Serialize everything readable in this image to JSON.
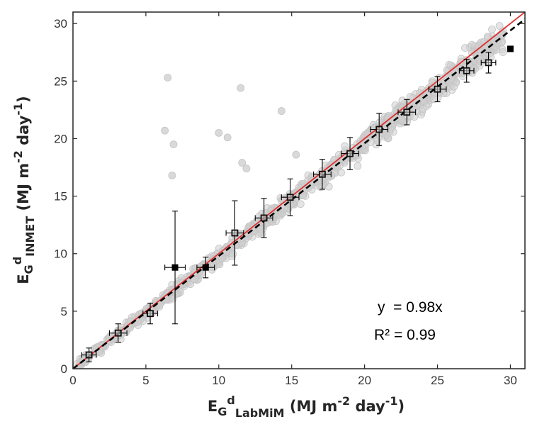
{
  "chart_data": {
    "type": "scatter",
    "xlim": [
      0,
      31
    ],
    "ylim": [
      0,
      31
    ],
    "xticks": [
      0,
      5,
      10,
      15,
      20,
      25,
      30
    ],
    "yticks": [
      0,
      5,
      10,
      15,
      20,
      25,
      30
    ],
    "xlabel": {
      "main": "E",
      "sub1": "G",
      "sup": "d",
      "sub2": "LabMiM",
      "unit_pre": " (MJ m",
      "unit_exp1": "-2",
      "unit_mid": " day",
      "unit_exp2": "-1",
      "unit_post": ")"
    },
    "ylabel": {
      "main": "E",
      "sub1": "G",
      "sup": "d",
      "sub2": "INMET",
      "unit_pre": " (MJ m",
      "unit_exp1": "-2",
      "unit_mid": " day",
      "unit_exp2": "-1",
      "unit_post": ")"
    },
    "annotations": {
      "equation": "y  = 0.98x",
      "r2": "R² = 0.99"
    },
    "colors": {
      "scatter": "#d0d0d0",
      "one_to_one": "#e03030",
      "fit": "#000000",
      "marker": "#000000"
    },
    "lines": [
      {
        "name": "1:1 line",
        "style": "solid",
        "slope": 1.0
      },
      {
        "name": "linear fit",
        "style": "dashed",
        "slope": 0.98
      }
    ],
    "binned_means": [
      {
        "x": 1.1,
        "y": 1.2,
        "xerr": 0.5,
        "yerr": 0.6,
        "filled": false
      },
      {
        "x": 3.1,
        "y": 3.1,
        "xerr": 0.6,
        "yerr": 0.8,
        "filled": false
      },
      {
        "x": 5.3,
        "y": 4.8,
        "xerr": 0.5,
        "yerr": 0.9,
        "filled": false
      },
      {
        "x": 7.0,
        "y": 8.8,
        "xerr": 0.7,
        "yerr": 4.9,
        "filled": true
      },
      {
        "x": 9.1,
        "y": 8.8,
        "xerr": 0.6,
        "yerr": 0.9,
        "filled": true
      },
      {
        "x": 11.1,
        "y": 11.8,
        "xerr": 0.6,
        "yerr": 2.8,
        "filled": false
      },
      {
        "x": 13.1,
        "y": 13.1,
        "xerr": 0.6,
        "yerr": 1.7,
        "filled": false
      },
      {
        "x": 14.9,
        "y": 14.9,
        "xerr": 0.6,
        "yerr": 1.6,
        "filled": false
      },
      {
        "x": 17.1,
        "y": 16.9,
        "xerr": 0.6,
        "yerr": 1.3,
        "filled": false
      },
      {
        "x": 19.0,
        "y": 18.7,
        "xerr": 0.6,
        "yerr": 1.4,
        "filled": false
      },
      {
        "x": 21.0,
        "y": 20.8,
        "xerr": 0.6,
        "yerr": 1.4,
        "filled": false
      },
      {
        "x": 22.9,
        "y": 22.3,
        "xerr": 0.6,
        "yerr": 1.1,
        "filled": false
      },
      {
        "x": 25.0,
        "y": 24.3,
        "xerr": 0.6,
        "yerr": 1.1,
        "filled": false
      },
      {
        "x": 27.0,
        "y": 25.9,
        "xerr": 0.5,
        "yerr": 1.0,
        "filled": false
      },
      {
        "x": 28.5,
        "y": 26.6,
        "xerr": 0.5,
        "yerr": 0.9,
        "filled": false
      },
      {
        "x": 30.0,
        "y": 27.8,
        "xerr": 0.0,
        "yerr": 0.0,
        "filled": true
      }
    ],
    "scatter_outliers": [
      {
        "x": 6.5,
        "y": 25.3
      },
      {
        "x": 6.3,
        "y": 20.7
      },
      {
        "x": 6.9,
        "y": 19.5
      },
      {
        "x": 6.8,
        "y": 16.8
      },
      {
        "x": 10.0,
        "y": 20.5
      },
      {
        "x": 10.6,
        "y": 20.1
      },
      {
        "x": 11.5,
        "y": 24.4
      },
      {
        "x": 14.3,
        "y": 22.4
      },
      {
        "x": 11.9,
        "y": 17.4
      },
      {
        "x": 11.6,
        "y": 17.9
      },
      {
        "x": 15.3,
        "y": 18.6
      }
    ],
    "scatter_band": {
      "x_range": [
        0.2,
        29.5
      ],
      "slope": 0.98,
      "spread": 0.7,
      "count": 1000
    }
  }
}
